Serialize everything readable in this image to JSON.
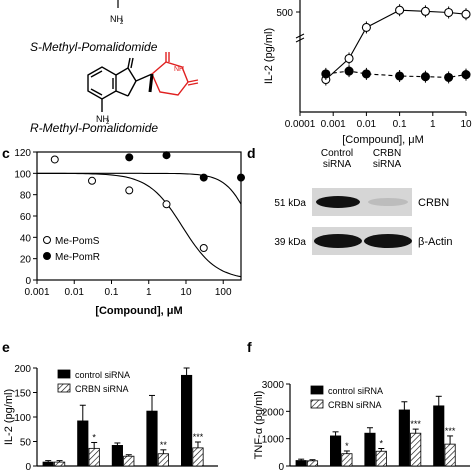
{
  "structures": {
    "nh2_top": "NH",
    "s_name": "S-Methyl-Pomalidomide",
    "r_name": "R-Methyl-Pomalidomide",
    "nh2_ring": "NH"
  },
  "panel_letters": {
    "c": "c",
    "d": "d",
    "e": "e",
    "f": "f"
  },
  "chart_data": [
    {
      "id": "b",
      "type": "line",
      "ylabel": "IL-2 (pg/ml)",
      "xlabel": "[Compound], μM",
      "xscale": "log",
      "xlim": [
        0.0001,
        10
      ],
      "x_ticks": [
        "0.0001",
        "0.001",
        "0.01",
        "0.1",
        "1",
        "10"
      ],
      "y_ticks": [
        "500"
      ],
      "series": [
        {
          "style": "open-circle-solid",
          "x": [
            0.0006,
            0.003,
            0.01,
            0.1,
            0.6,
            3,
            10
          ],
          "y": [
            10,
            40,
            430,
            580,
            570,
            560,
            545
          ]
        },
        {
          "style": "filled-circle-dashed",
          "x": [
            0.0006,
            0.003,
            0.01,
            0.1,
            0.6,
            3,
            10
          ],
          "y": [
            18,
            22,
            18,
            15,
            14,
            13,
            17
          ]
        }
      ]
    },
    {
      "id": "c",
      "type": "scatter",
      "xscale": "log",
      "xlim": [
        0.001,
        300
      ],
      "ylim": [
        0,
        120
      ],
      "xlabel": "[Compound], μM",
      "x_ticks": [
        "0.001",
        "0.01",
        "0.1",
        "1",
        "10",
        "100"
      ],
      "y_ticks": [
        "0",
        "20",
        "40",
        "60",
        "80",
        "100",
        "120"
      ],
      "series": [
        {
          "name": "Me-PomS",
          "marker": "open",
          "x": [
            0.003,
            0.03,
            0.3,
            3,
            30
          ],
          "y": [
            113,
            93,
            84,
            71,
            30
          ]
        },
        {
          "name": "Me-PomR",
          "marker": "filled",
          "x": [
            0.3,
            3,
            30,
            300
          ],
          "y": [
            115,
            117,
            96,
            96
          ]
        }
      ]
    },
    {
      "id": "d",
      "type": "table",
      "col_headers": [
        "Control\nsiRNA",
        "CRBN\nsiRNA"
      ],
      "rows": [
        {
          "left": "51 kDa",
          "right": "CRBN"
        },
        {
          "left": "39 kDa",
          "right": "β-Actin"
        }
      ]
    },
    {
      "id": "e",
      "type": "bar",
      "ylabel": "IL-2 (pg/ml)",
      "ylim": [
        0,
        200
      ],
      "y_ticks": [
        "0",
        "50",
        "100",
        "150",
        "200"
      ],
      "series": [
        {
          "name": "control siRNA",
          "values": [
            8,
            92,
            42,
            112,
            185
          ]
        },
        {
          "name": "CRBN siRNA",
          "values": [
            8,
            36,
            20,
            25,
            37
          ]
        }
      ],
      "errors": [
        [
          3,
          32,
          5,
          32,
          15
        ],
        [
          3,
          12,
          3,
          8,
          12
        ]
      ],
      "annotations": [
        "",
        "*",
        "",
        "**",
        "***"
      ]
    },
    {
      "id": "f",
      "type": "bar",
      "ylabel": "TNF-α (pg/ml)",
      "ylim": [
        0,
        3000
      ],
      "y_ticks": [
        "0",
        "1000",
        "2000",
        "3000"
      ],
      "series": [
        {
          "name": "control siRNA",
          "values": [
            200,
            1100,
            1200,
            2050,
            2200
          ]
        },
        {
          "name": "CRBN siRNA",
          "values": [
            190,
            450,
            540,
            1200,
            800
          ]
        }
      ],
      "errors": [
        [
          50,
          150,
          200,
          300,
          350
        ],
        [
          40,
          100,
          100,
          150,
          300
        ]
      ],
      "annotations": [
        "",
        "*",
        "*",
        "***",
        "***"
      ]
    }
  ]
}
